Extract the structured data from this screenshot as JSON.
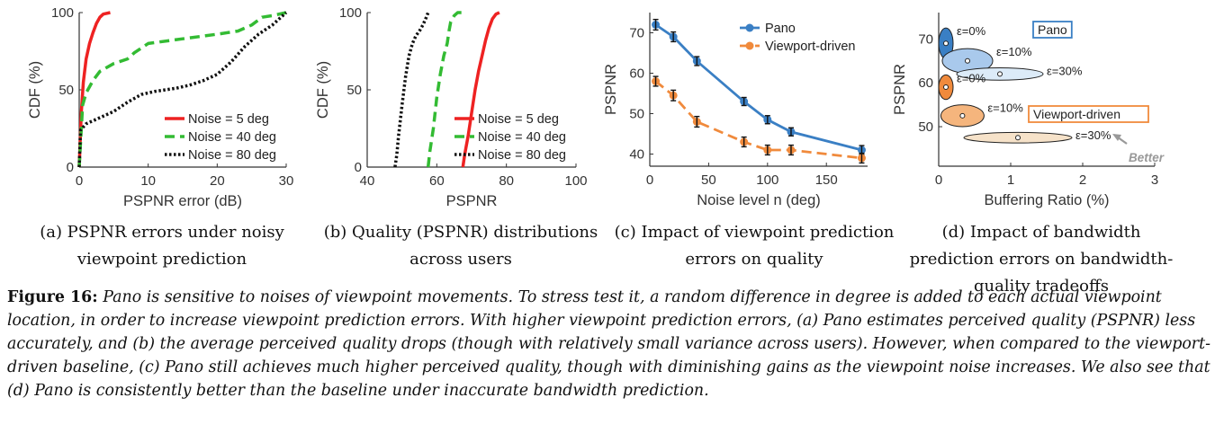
{
  "chart_data": [
    {
      "type": "line",
      "subcaption": "(a) PSPNR errors under noisy viewpoint prediction",
      "xlabel": "PSPNR error (dB)",
      "ylabel": "CDF (%)",
      "xlim": [
        0,
        30
      ],
      "ylim": [
        0,
        100
      ],
      "xticks": [
        0,
        10,
        20,
        30
      ],
      "yticks": [
        0,
        50,
        100
      ],
      "legend_position": "bottom-right",
      "series": [
        {
          "name": "Noise = 5 deg",
          "color": "#ee2222",
          "style": "solid",
          "x": [
            0,
            0.3,
            0.6,
            1.0,
            1.5,
            2.0,
            2.5,
            3.0,
            3.5,
            4.5
          ],
          "y": [
            0,
            35,
            55,
            70,
            80,
            87,
            93,
            97,
            99,
            100
          ]
        },
        {
          "name": "Noise = 40 deg",
          "color": "#33bb33",
          "style": "dashed",
          "x": [
            0,
            0.5,
            1.0,
            2.0,
            3.0,
            5.0,
            7.0,
            8.0,
            10.0,
            15.0,
            20.0,
            23.0,
            25.0,
            26.5,
            28.0,
            30.0
          ],
          "y": [
            0,
            40,
            48,
            56,
            62,
            67,
            70,
            74,
            80,
            83,
            86,
            88,
            92,
            97,
            98,
            100
          ]
        },
        {
          "name": "Noise = 80 deg",
          "color": "#111111",
          "style": "dotted",
          "x": [
            0,
            0.2,
            1.0,
            3.0,
            5.0,
            7.0,
            9.0,
            11.0,
            14.0,
            16.0,
            18.0,
            20.0,
            22.0,
            24.0,
            26.0,
            28.0,
            29.0,
            30.0
          ],
          "y": [
            0,
            24,
            28,
            32,
            36,
            42,
            47,
            49,
            51,
            53,
            56,
            60,
            68,
            78,
            86,
            92,
            96,
            100
          ]
        }
      ]
    },
    {
      "type": "line",
      "subcaption": "(b) Quality (PSPNR) distributions across users",
      "xlabel": "PSPNR",
      "ylabel": "CDF (%)",
      "xlim": [
        40,
        100
      ],
      "ylim": [
        0,
        100
      ],
      "xticks": [
        40,
        60,
        80,
        100
      ],
      "yticks": [
        0,
        50,
        100
      ],
      "legend_position": "bottom-right",
      "series": [
        {
          "name": "Noise = 5 deg",
          "color": "#ee2222",
          "style": "solid",
          "x": [
            67.5,
            68,
            69,
            70,
            71,
            72,
            73,
            74,
            75,
            76,
            77,
            78
          ],
          "y": [
            0,
            8,
            20,
            35,
            50,
            62,
            72,
            82,
            90,
            96,
            99,
            100
          ]
        },
        {
          "name": "Noise = 40 deg",
          "color": "#33bb33",
          "style": "dashed",
          "x": [
            57.5,
            58,
            59,
            60,
            61,
            62,
            63,
            63.5,
            64,
            65,
            66,
            68
          ],
          "y": [
            0,
            10,
            25,
            45,
            60,
            72,
            80,
            88,
            94,
            98,
            100,
            100
          ]
        },
        {
          "name": "Noise = 80 deg",
          "color": "#111111",
          "style": "dotted",
          "x": [
            48,
            48.5,
            49,
            50,
            51,
            52,
            53,
            54,
            55,
            56,
            57,
            57.5
          ],
          "y": [
            0,
            8,
            20,
            40,
            58,
            72,
            80,
            85,
            88,
            92,
            97,
            100
          ]
        }
      ]
    },
    {
      "type": "line",
      "subcaption": "(c) Impact of viewpoint prediction errors on quality",
      "xlabel": "Noise level n (deg)",
      "ylabel": "PSPNR",
      "xlim": [
        0,
        185
      ],
      "ylim": [
        37,
        75
      ],
      "xticks": [
        0,
        50,
        100,
        150
      ],
      "yticks": [
        40,
        50,
        60,
        70
      ],
      "legend_position": "top-right",
      "series": [
        {
          "name": "Pano",
          "color": "#3a7fc4",
          "style": "solid",
          "x": [
            5,
            20,
            40,
            80,
            100,
            120,
            180
          ],
          "y": [
            72,
            69,
            63,
            53,
            48.5,
            45.5,
            41
          ],
          "err": [
            1.3,
            1.2,
            1.1,
            1.0,
            1.0,
            1.0,
            1.1
          ]
        },
        {
          "name": "Viewport-driven",
          "color": "#f08a3c",
          "style": "dashed",
          "x": [
            5,
            20,
            40,
            80,
            100,
            120,
            180
          ],
          "y": [
            58,
            54.5,
            48,
            43,
            41,
            41,
            39
          ],
          "err": [
            1.2,
            1.3,
            1.3,
            1.2,
            1.2,
            1.2,
            1.2
          ]
        }
      ]
    },
    {
      "type": "scatter",
      "subcaption": "(d) Impact of bandwidth prediction errors on bandwidth-quality tradeoffs",
      "xlabel": "Buffering Ratio (%)",
      "ylabel": "PSPNR",
      "xlim": [
        0,
        3
      ],
      "ylim": [
        41,
        76
      ],
      "xticks": [
        0,
        1,
        2,
        3
      ],
      "yticks": [
        50,
        60,
        70
      ],
      "better_label": "Better",
      "groups": [
        {
          "name": "Pano",
          "color": "#3a7fc4"
        },
        {
          "name": "Viewport-driven",
          "color": "#f08a3c"
        }
      ],
      "points": [
        {
          "group": "Pano",
          "label": "ε=0%",
          "x": 0.1,
          "y": 69,
          "x_spread": 0.1,
          "y_spread": 3.5
        },
        {
          "group": "Pano",
          "label": "ε=10%",
          "x": 0.4,
          "y": 65,
          "x_spread": 0.35,
          "y_spread": 2.8
        },
        {
          "group": "Pano",
          "label": "ε=30%",
          "x": 0.85,
          "y": 62,
          "x_spread": 0.6,
          "y_spread": 1.4
        },
        {
          "group": "Viewport-driven",
          "label": "ε=0%",
          "x": 0.1,
          "y": 59,
          "x_spread": 0.1,
          "y_spread": 2.8
        },
        {
          "group": "Viewport-driven",
          "label": "ε=10%",
          "x": 0.33,
          "y": 52.5,
          "x_spread": 0.3,
          "y_spread": 2.5
        },
        {
          "group": "Viewport-driven",
          "label": "ε=30%",
          "x": 1.1,
          "y": 47.5,
          "x_spread": 0.75,
          "y_spread": 1.2
        }
      ]
    }
  ],
  "caption": {
    "label": "Figure 16:",
    "text": "Pano is sensitive to noises of viewpoint movements. To stress test it, a random difference in degree is added to each actual viewpoint location, in order to increase viewpoint prediction errors. With higher viewpoint prediction errors, (a) Pano estimates perceived quality (PSPNR) less accurately, and (b) the average perceived quality drops (though with relatively small variance across users). However, when compared to the viewport-driven baseline, (c) Pano still achieves much higher perceived quality, though with diminishing gains as the viewpoint noise increases. We also see that (d) Pano is consistently better than the baseline under inaccurate bandwidth prediction."
  }
}
